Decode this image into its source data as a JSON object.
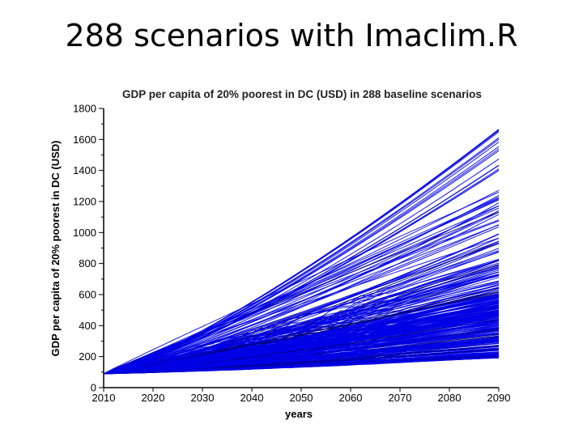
{
  "slide": {
    "title": "288 scenarios with Imaclim.R"
  },
  "chart_data": {
    "type": "line",
    "title": "GDP per capita of 20% poorest in DC (USD) in 288 baseline scenarios",
    "xlabel": "years",
    "ylabel": "GDP per capita of 20% poorest in DC (USD)",
    "xlim": [
      2010,
      2090
    ],
    "ylim": [
      0,
      1800
    ],
    "xticks": [
      2010,
      2020,
      2030,
      2040,
      2050,
      2060,
      2070,
      2080,
      2090
    ],
    "yticks": [
      0,
      200,
      400,
      600,
      800,
      1000,
      1200,
      1400,
      1600,
      1800
    ],
    "scenario_count": 288,
    "start_value": 90,
    "end_value_range": [
      190,
      1720
    ],
    "grid": false,
    "series_color": "#0000e6"
  }
}
